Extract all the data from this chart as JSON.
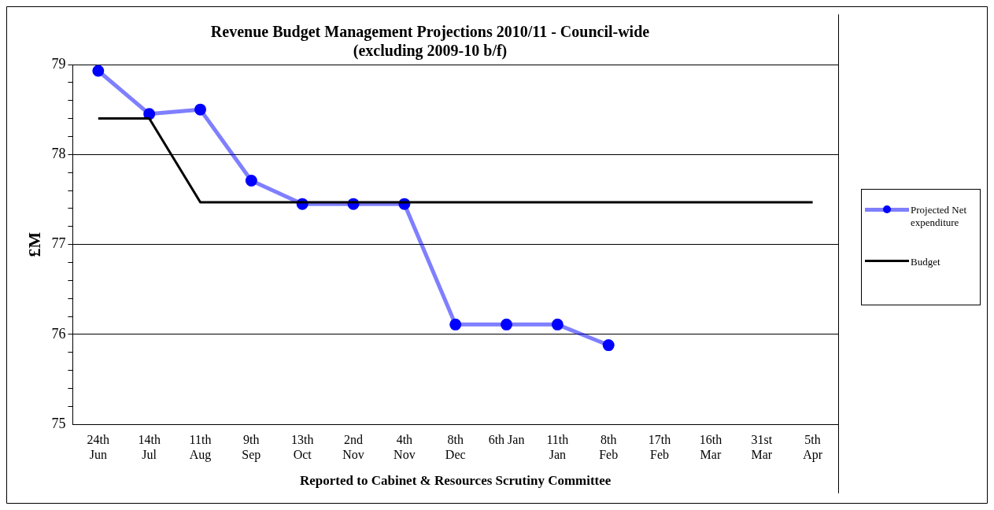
{
  "chart_data": {
    "type": "line",
    "title": "Revenue Budget Management Projections 2010/11 - Council-wide",
    "subtitle": "(excluding 2009-10 b/f)",
    "xlabel": "Reported to Cabinet & Resources Scrutiny Committee",
    "ylabel": "£M",
    "categories": [
      "24th\nJun",
      "14th\nJul",
      "11th\nAug",
      "9th\nSep",
      "13th\nOct",
      "2nd\nNov",
      "4th\nNov",
      "8th\nDec",
      "6th Jan",
      "11th\nJan",
      "8th\nFeb",
      "17th\nFeb",
      "16th\nMar",
      "31st\nMar",
      "5th\nApr"
    ],
    "series": [
      {
        "name": "Projected Net expenditure",
        "color": "#0000ff",
        "marker": "circle",
        "values": [
          78.93,
          78.45,
          78.5,
          77.71,
          77.45,
          77.45,
          77.45,
          76.11,
          76.11,
          76.11,
          75.88,
          null,
          null,
          null,
          null
        ]
      },
      {
        "name": "Budget",
        "color": "#000000",
        "marker": "none",
        "values": [
          78.4,
          78.4,
          77.47,
          77.47,
          77.47,
          77.47,
          77.47,
          77.47,
          77.47,
          77.47,
          77.47,
          77.47,
          77.47,
          77.47,
          77.47
        ]
      }
    ],
    "ylim": [
      75,
      79
    ],
    "yticks": [
      75,
      {
        "value": 75.2,
        "label": null
      },
      {
        "value": 75.4,
        "label": null
      },
      {
        "value": 75.6,
        "label": null
      },
      {
        "value": 75.8,
        "label": null
      },
      76,
      {
        "value": 76.2,
        "label": null
      },
      {
        "value": 76.4,
        "label": null
      },
      {
        "value": 76.6,
        "label": null
      },
      {
        "value": 76.8,
        "label": null
      },
      77,
      {
        "value": 77.2,
        "label": null
      },
      {
        "value": 77.4,
        "label": null
      },
      {
        "value": 77.6,
        "label": null
      },
      {
        "value": 77.8,
        "label": null
      },
      78,
      {
        "value": 78.2,
        "label": null
      },
      {
        "value": 78.4,
        "label": null
      },
      {
        "value": 78.6,
        "label": null
      },
      {
        "value": 78.8,
        "label": null
      },
      79
    ],
    "grid": "y",
    "legend": "right"
  }
}
